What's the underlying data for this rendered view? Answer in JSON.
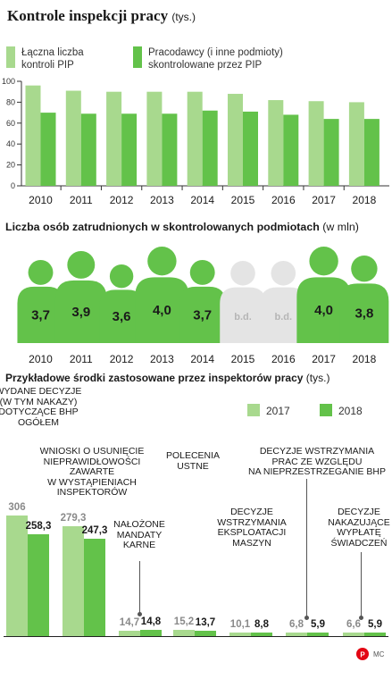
{
  "section1": {
    "title": "Kontrole inspekcji pracy",
    "unit": "(tys.)",
    "legend": [
      {
        "line1": "Łączna liczba",
        "line2": "kontroli PIP",
        "color": "#a8d98e"
      },
      {
        "line1": "Pracodawcy (i inne podmioty)",
        "line2": "skontrolowane przez PIP",
        "color": "#63c24a"
      }
    ]
  },
  "section2": {
    "title": "Liczba osób zatrudnionych w skontrolowanych podmiotach",
    "unit": "(w mln)"
  },
  "section3": {
    "title": "Przykładowe środki zastosowane przez inspektorów pracy",
    "unit": "(tys.)",
    "legend": [
      {
        "label": "2017",
        "color": "#a8d98e"
      },
      {
        "label": "2018",
        "color": "#63c24a"
      }
    ]
  },
  "chart_data": [
    {
      "type": "bar",
      "categories": [
        "2010",
        "2011",
        "2012",
        "2013",
        "2014",
        "2015",
        "2016",
        "2017",
        "2018"
      ],
      "yticks": [
        "0",
        "20",
        "40",
        "60",
        "80",
        "100"
      ],
      "ylim": [
        0,
        100
      ],
      "series": [
        {
          "name": "Łączna liczba kontroli PIP",
          "values": [
            96,
            91,
            90,
            90,
            90,
            88,
            82,
            81,
            80
          ]
        },
        {
          "name": "Pracodawcy (i inne podmioty) skontrolowane przez PIP",
          "values": [
            70,
            69,
            69,
            69,
            72,
            71,
            68,
            64,
            64
          ]
        }
      ]
    },
    {
      "type": "bar",
      "categories": [
        "2010",
        "2011",
        "2012",
        "2013",
        "2014",
        "2015",
        "2016",
        "2017",
        "2018"
      ],
      "values": [
        3.7,
        3.9,
        3.6,
        4.0,
        3.7,
        null,
        null,
        4.0,
        3.8
      ],
      "labels": [
        "3,7",
        "3,9",
        "3,6",
        "4,0",
        "3,7",
        "b.d.",
        "b.d.",
        "4,0",
        "3,8"
      ]
    },
    {
      "type": "bar",
      "categories": [
        "Wydane decyzje (w tym nakazy) dotyczące BHP ogółem",
        "Wnioski o usunięcie nieprawidłowości zawarte w wystąpieniach inspektorów",
        "Nałożone mandaty karne",
        "Polecenia ustne",
        "Decyzje wstrzymania eksploatacji maszyn",
        "Decyzje wstrzymania prac ze względu na nieprzestrzeganie BHP",
        "Decyzje nakazujące wypłatę świadczeń"
      ],
      "series": [
        {
          "name": "2017",
          "values": [
            306,
            279.3,
            14.7,
            15.2,
            10.1,
            6.8,
            6.6
          ]
        },
        {
          "name": "2018",
          "values": [
            258.3,
            247.3,
            14.8,
            13.7,
            8.8,
            5.9,
            5.9
          ]
        }
      ],
      "labels2017": [
        "306",
        "279,3",
        "14,7",
        "15,2",
        "10,1",
        "6,8",
        "6,6"
      ],
      "labels2018": [
        "258,3",
        "247,3",
        "14,8",
        "13,7",
        "8,8",
        "5,9",
        "5,9"
      ],
      "annotations": [
        [
          "WYDANE DECYZJE",
          "(W TYM NAKAZY)",
          "DOTYCZĄCE BHP",
          "OGÓŁEM"
        ],
        [
          "WNIOSKI O USUNIĘCIE",
          "NIEPRAWIDŁOWOŚCI",
          "ZAWARTE",
          "W WYSTĄPIENIACH",
          "INSPEKTORÓW"
        ],
        [
          "NAŁOŻONE",
          "MANDATY",
          "KARNE"
        ],
        [
          "POLECENIA",
          "USTNE"
        ],
        [
          "DECYZJE",
          "WSTRZYMANIA",
          "EKSPLOATACJI",
          "MASZYN"
        ],
        [
          "DECYZJE WSTRZYMANIA",
          "PRAC ZE WZGLĘDU",
          "NA NIEPRZESTRZEGANIE BHP"
        ],
        [
          "DECYZJE",
          "NAKAZUJĄCE",
          "WYPŁATĘ",
          "ŚWIADCZEŃ"
        ]
      ]
    }
  ],
  "footer": {
    "logo": "©P",
    "credit": "MC"
  }
}
